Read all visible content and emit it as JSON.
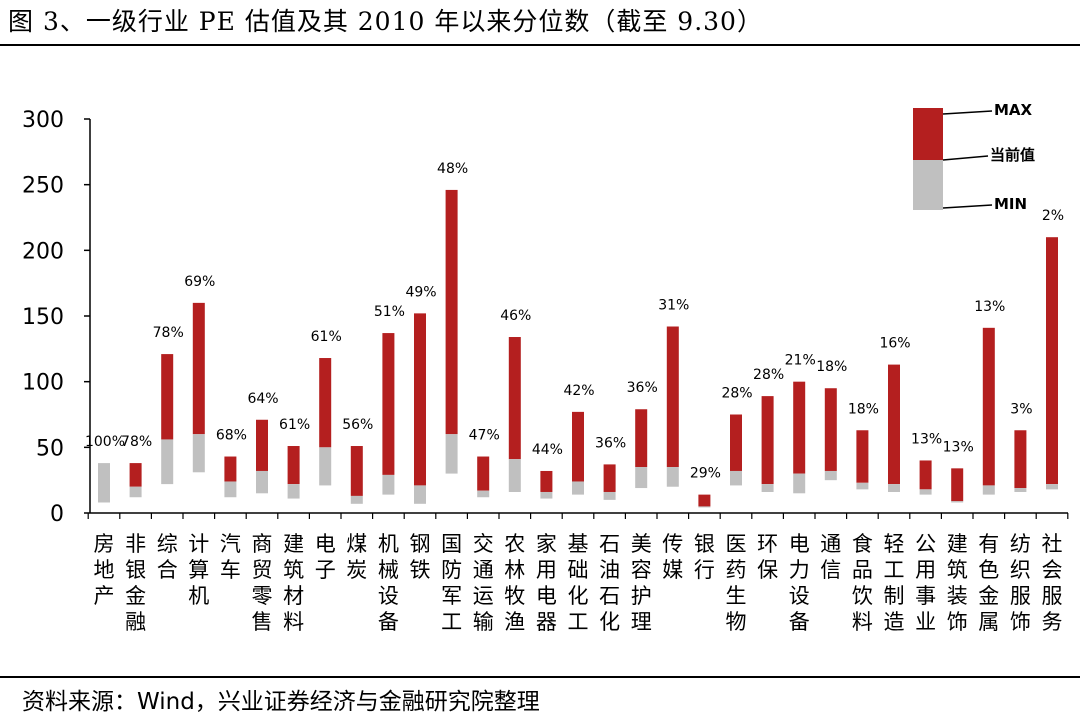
{
  "title": "图 3、一级行业 PE 估值及其 2010 年以来分位数（截至 9.30）",
  "source": "资料来源：Wind，兴业证券经济与金融研究院整理",
  "colors": {
    "max_bar": "#b41f1f",
    "min_bar": "#c0c0c0"
  },
  "chart_data": {
    "type": "bar",
    "title": "一级行业 PE 估值及其 2010 年以来分位数（截至 9.30）",
    "xlabel": "",
    "ylabel": "",
    "ylim": [
      0,
      300
    ],
    "yticks": [
      0,
      50,
      100,
      150,
      200,
      250,
      300
    ],
    "legend": {
      "position": "top-right",
      "labels": {
        "max": "MAX",
        "current": "当前值",
        "min": "MIN"
      }
    },
    "categories": [
      "房地产",
      "非银金融",
      "综合",
      "计算机",
      "汽车",
      "商贸零售",
      "建筑材料",
      "电子",
      "煤炭",
      "机械设备",
      "钢铁",
      "国防军工",
      "交通运输",
      "农林牧渔",
      "家用电器",
      "基础化工",
      "石油石化",
      "美容护理",
      "传媒",
      "银行",
      "医药生物",
      "环保",
      "电力设备",
      "通信",
      "食品饮料",
      "轻工制造",
      "公用事业",
      "建筑装饰",
      "有色金属",
      "纺织服饰",
      "社会服务"
    ],
    "series": [
      {
        "name": "MAX",
        "values": [
          38,
          38,
          121,
          160,
          43,
          71,
          51,
          118,
          51,
          137,
          152,
          246,
          43,
          134,
          32,
          77,
          37,
          79,
          142,
          14,
          75,
          89,
          100,
          95,
          63,
          113,
          40,
          34,
          141,
          63,
          210
        ]
      },
      {
        "name": "当前值",
        "values": [
          38,
          20,
          56,
          60,
          24,
          32,
          22,
          50,
          13,
          29,
          21,
          60,
          17,
          41,
          16,
          24,
          16,
          35,
          35,
          5,
          32,
          22,
          30,
          32,
          23,
          22,
          18,
          9,
          21,
          19,
          22
        ]
      },
      {
        "name": "MIN",
        "values": [
          8,
          12,
          22,
          31,
          12,
          15,
          11,
          21,
          7,
          14,
          7,
          30,
          12,
          16,
          11,
          14,
          10,
          19,
          20,
          5,
          21,
          16,
          15,
          25,
          18,
          16,
          14,
          8,
          14,
          16,
          18
        ]
      },
      {
        "name": "分位数",
        "values": [
          "100%",
          "78%",
          "78%",
          "69%",
          "68%",
          "64%",
          "61%",
          "61%",
          "56%",
          "51%",
          "49%",
          "48%",
          "47%",
          "46%",
          "44%",
          "42%",
          "36%",
          "36%",
          "31%",
          "29%",
          "28%",
          "28%",
          "21%",
          "18%",
          "18%",
          "16%",
          "13%",
          "13%",
          "13%",
          "3%",
          "2%"
        ]
      }
    ]
  }
}
